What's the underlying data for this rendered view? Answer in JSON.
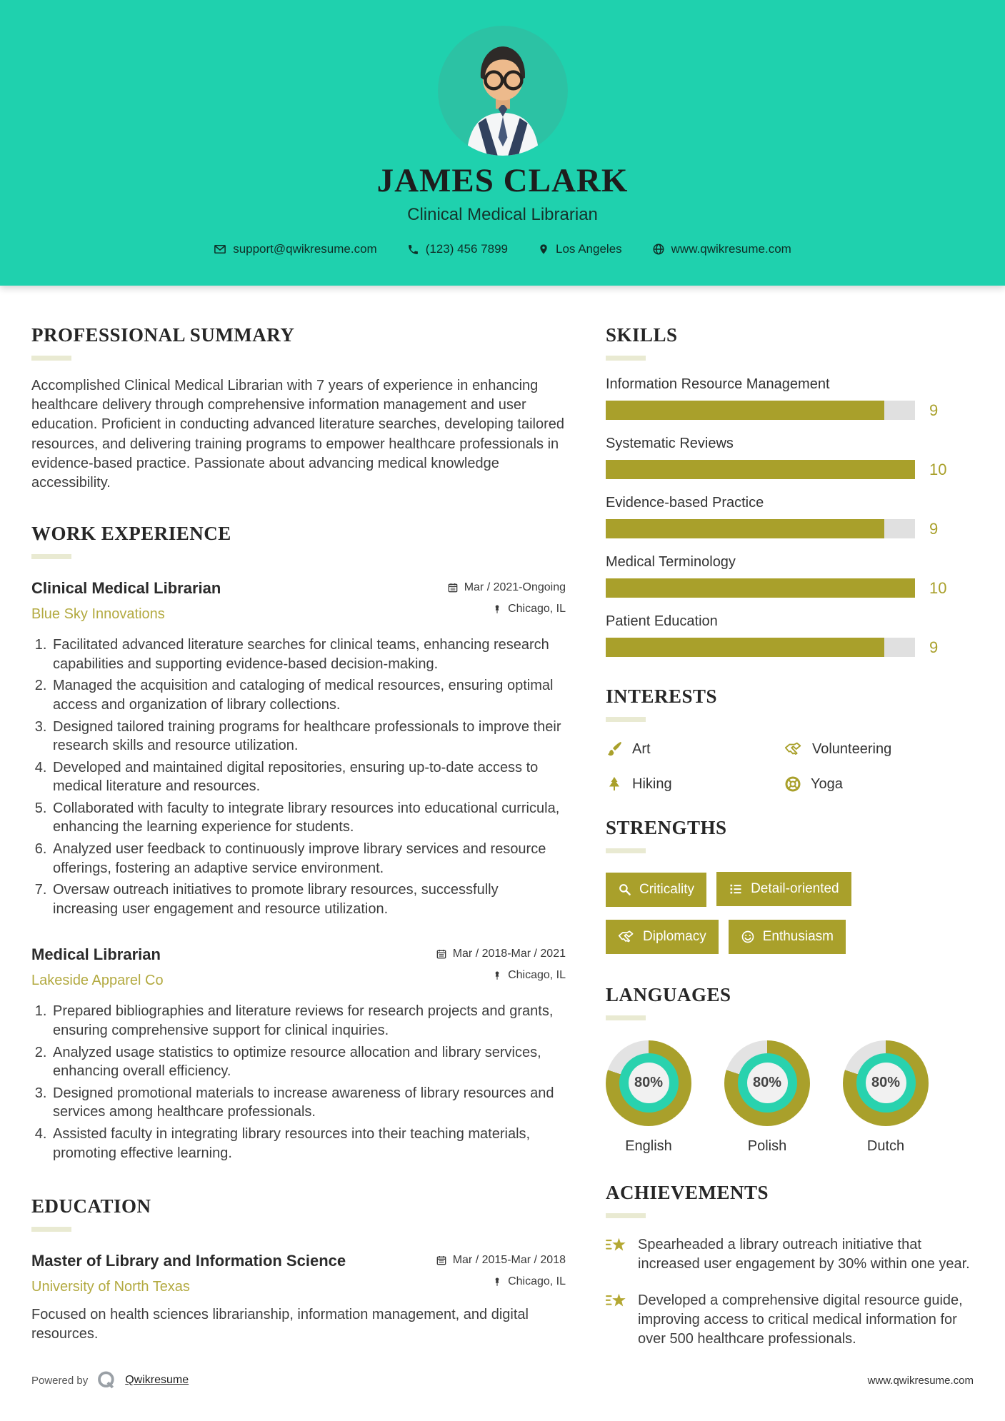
{
  "colors": {
    "teal": "#1fd1ae",
    "olive": "#a9a02b",
    "track": "#e3e3e3",
    "company_accent": "#b3aa41"
  },
  "header": {
    "name": "JAMES CLARK",
    "title": "Clinical Medical Librarian",
    "contact": {
      "email": "support@qwikresume.com",
      "phone": "(123) 456 7899",
      "location": "Los Angeles",
      "website": "www.qwikresume.com"
    }
  },
  "summary": {
    "heading": "PROFESSIONAL SUMMARY",
    "text": "Accomplished Clinical Medical Librarian with 7 years of experience in enhancing healthcare delivery through comprehensive information management and user education. Proficient in conducting advanced literature searches, developing tailored resources, and delivering training programs to empower healthcare professionals in evidence-based practice. Passionate about advancing medical knowledge accessibility."
  },
  "work": {
    "heading": "WORK EXPERIENCE",
    "jobs": [
      {
        "title": "Clinical Medical Librarian",
        "company": "Blue Sky Innovations",
        "date": "Mar / 2021-Ongoing",
        "location": "Chicago, IL",
        "bullets": [
          "Facilitated advanced literature searches for clinical teams, enhancing research capabilities and supporting evidence-based decision-making.",
          "Managed the acquisition and cataloging of medical resources, ensuring optimal access and organization of library collections.",
          "Designed tailored training programs for healthcare professionals to improve their research skills and resource utilization.",
          "Developed and maintained digital repositories, ensuring up-to-date access to medical literature and resources.",
          "Collaborated with faculty to integrate library resources into educational curricula, enhancing the learning experience for students.",
          "Analyzed user feedback to continuously improve library services and resource offerings, fostering an adaptive service environment.",
          "Oversaw outreach initiatives to promote library resources, successfully increasing user engagement and resource utilization."
        ]
      },
      {
        "title": "Medical Librarian",
        "company": "Lakeside Apparel Co",
        "date": "Mar / 2018-Mar / 2021",
        "location": "Chicago, IL",
        "bullets": [
          "Prepared bibliographies and literature reviews for research projects and grants, ensuring comprehensive support for clinical inquiries.",
          "Analyzed usage statistics to optimize resource allocation and library services, enhancing overall efficiency.",
          "Designed promotional materials to increase awareness of library resources and services among healthcare professionals.",
          "Assisted faculty in integrating library resources into their teaching materials, promoting effective learning."
        ]
      }
    ]
  },
  "education": {
    "heading": "EDUCATION",
    "degree": "Master of Library and Information Science",
    "school": "University of North Texas",
    "date": "Mar / 2015-Mar / 2018",
    "location": "Chicago, IL",
    "note": "Focused on health sciences librarianship, information management, and digital resources."
  },
  "skills": {
    "heading": "SKILLS",
    "max": 10,
    "items": [
      {
        "name": "Information Resource Management",
        "value": 9
      },
      {
        "name": "Systematic Reviews",
        "value": 10
      },
      {
        "name": "Evidence-based Practice",
        "value": 9
      },
      {
        "name": "Medical Terminology",
        "value": 10
      },
      {
        "name": "Patient Education",
        "value": 9
      }
    ]
  },
  "interests": {
    "heading": "INTERESTS",
    "items": [
      {
        "label": "Art",
        "icon": "paintbrush-icon"
      },
      {
        "label": "Volunteering",
        "icon": "handshake-icon"
      },
      {
        "label": "Hiking",
        "icon": "pine-tree-icon"
      },
      {
        "label": "Yoga",
        "icon": "lifebuoy-icon"
      }
    ]
  },
  "strengths": {
    "heading": "STRENGTHS",
    "items": [
      {
        "label": "Criticality",
        "icon": "magnifier-icon"
      },
      {
        "label": "Detail-oriented",
        "icon": "list-icon"
      },
      {
        "label": "Diplomacy",
        "icon": "handshake-icon"
      },
      {
        "label": "Enthusiasm",
        "icon": "smiley-icon"
      }
    ]
  },
  "languages": {
    "heading": "LANGUAGES",
    "items": [
      {
        "name": "English",
        "percent": 80,
        "percent_label": "80%"
      },
      {
        "name": "Polish",
        "percent": 80,
        "percent_label": "80%"
      },
      {
        "name": "Dutch",
        "percent": 80,
        "percent_label": "80%"
      }
    ]
  },
  "achievements": {
    "heading": "ACHIEVEMENTS",
    "items": [
      "Spearheaded a library outreach initiative that increased user engagement by 30% within one year.",
      "Developed a comprehensive digital resource guide, improving access to critical medical information for over 500 healthcare professionals."
    ]
  },
  "footer": {
    "powered_by": "Powered by",
    "brand": "Qwikresume",
    "website": "www.qwikresume.com"
  }
}
